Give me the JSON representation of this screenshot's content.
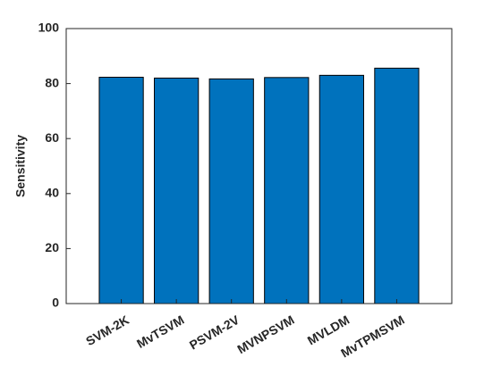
{
  "chart_data": {
    "type": "bar",
    "y_label": "Sensitivity",
    "categories": [
      "SVM-2K",
      "MvTSVM",
      "PSVM-2V",
      "MVNPSVM",
      "MVLDM",
      "MvTPMSVM"
    ],
    "values": [
      82.3,
      82.0,
      81.7,
      82.2,
      83.0,
      85.6
    ],
    "color": "#0072bd",
    "ylim": [
      0,
      100
    ],
    "yticks": [
      0,
      20,
      40,
      60,
      80,
      100
    ],
    "grid": true
  }
}
